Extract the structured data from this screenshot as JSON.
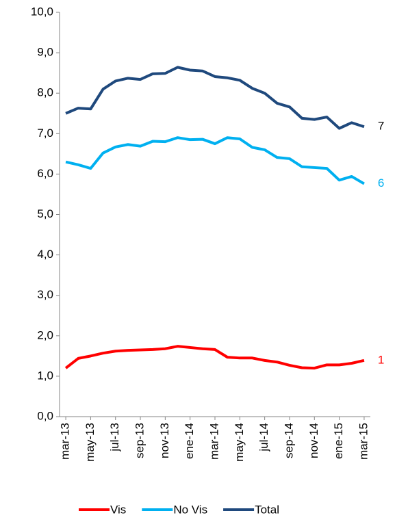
{
  "chart_data": {
    "type": "line",
    "categories": [
      "mar-13",
      null,
      "may-13",
      null,
      "jul-13",
      null,
      "sep-13",
      null,
      "nov-13",
      null,
      "ene-14",
      null,
      "mar-14",
      null,
      "may-14",
      null,
      "jul-14",
      null,
      "sep-14",
      null,
      "nov-14",
      null,
      "ene-15",
      null,
      "mar-15"
    ],
    "series": [
      {
        "name": "Vis",
        "color": "#ff0000",
        "values": [
          1.2,
          1.44,
          1.5,
          1.57,
          1.62,
          1.64,
          1.65,
          1.66,
          1.68,
          1.74,
          1.71,
          1.68,
          1.66,
          1.47,
          1.45,
          1.45,
          1.39,
          1.35,
          1.27,
          1.21,
          1.2,
          1.28,
          1.28,
          1.32,
          1.39
        ],
        "value_labels": [
          null,
          null,
          null,
          null,
          null,
          null,
          null,
          null,
          null,
          null,
          null,
          null,
          null,
          null,
          null,
          null,
          null,
          null,
          null,
          null,
          null,
          null,
          null,
          null,
          "1"
        ]
      },
      {
        "name": "No Vis",
        "color": "#00b0f0",
        "values": [
          6.3,
          6.23,
          6.14,
          6.52,
          6.67,
          6.73,
          6.69,
          6.81,
          6.8,
          6.9,
          6.85,
          6.86,
          6.75,
          6.9,
          6.87,
          6.66,
          6.6,
          6.41,
          6.38,
          6.18,
          6.16,
          6.14,
          5.85,
          5.94,
          5.76
        ],
        "value_labels": [
          null,
          null,
          null,
          null,
          null,
          null,
          null,
          null,
          null,
          null,
          null,
          null,
          null,
          null,
          null,
          null,
          null,
          null,
          null,
          null,
          null,
          null,
          null,
          null,
          "6"
        ]
      },
      {
        "name": "Total",
        "color": "#1f497d",
        "values": [
          7.5,
          7.63,
          7.61,
          8.1,
          8.3,
          8.37,
          8.34,
          8.48,
          8.49,
          8.64,
          8.57,
          8.55,
          8.41,
          8.38,
          8.32,
          8.12,
          8.0,
          7.75,
          7.66,
          7.38,
          7.35,
          7.41,
          7.13,
          7.27,
          7.17
        ],
        "value_labels": [
          null,
          null,
          null,
          null,
          null,
          null,
          null,
          null,
          null,
          null,
          null,
          null,
          null,
          null,
          null,
          null,
          null,
          null,
          null,
          null,
          null,
          null,
          null,
          null,
          "7"
        ]
      }
    ],
    "ylim": [
      0,
      10
    ],
    "yticks": [
      {
        "value": 0,
        "label": "0,0"
      },
      {
        "value": 1,
        "label": "1,0"
      },
      {
        "value": 2,
        "label": "2,0"
      },
      {
        "value": 3,
        "label": "3,0"
      },
      {
        "value": 4,
        "label": "4,0"
      },
      {
        "value": 5,
        "label": "5,0"
      },
      {
        "value": 6,
        "label": "6,0"
      },
      {
        "value": 7,
        "label": "7,0"
      },
      {
        "value": 8,
        "label": "8,0"
      },
      {
        "value": 9,
        "label": "9,0"
      },
      {
        "value": 10,
        "label": "10,0"
      }
    ],
    "grid": false,
    "legend": "bottom"
  }
}
